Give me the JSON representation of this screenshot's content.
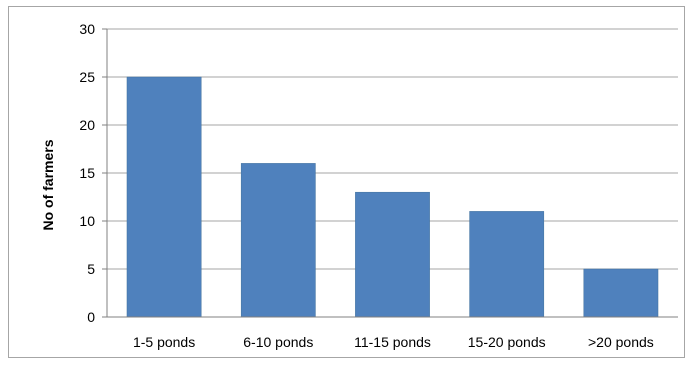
{
  "chart_data": {
    "type": "bar",
    "title": "",
    "xlabel": "",
    "ylabel": "No of farmers",
    "categories": [
      "1-5 ponds",
      "6-10 ponds",
      "11-15 ponds",
      "15-20 ponds",
      ">20 ponds"
    ],
    "values": [
      25,
      16,
      13,
      11,
      5
    ],
    "ylim": [
      0,
      30
    ],
    "yticks": [
      0,
      5,
      10,
      15,
      20,
      25,
      30
    ],
    "grid": true,
    "legend": "none",
    "colors": {
      "bar": "#4f81bd",
      "bar_edge": "#41719c",
      "grid": "#a6a6a6",
      "axis": "#808080"
    }
  }
}
